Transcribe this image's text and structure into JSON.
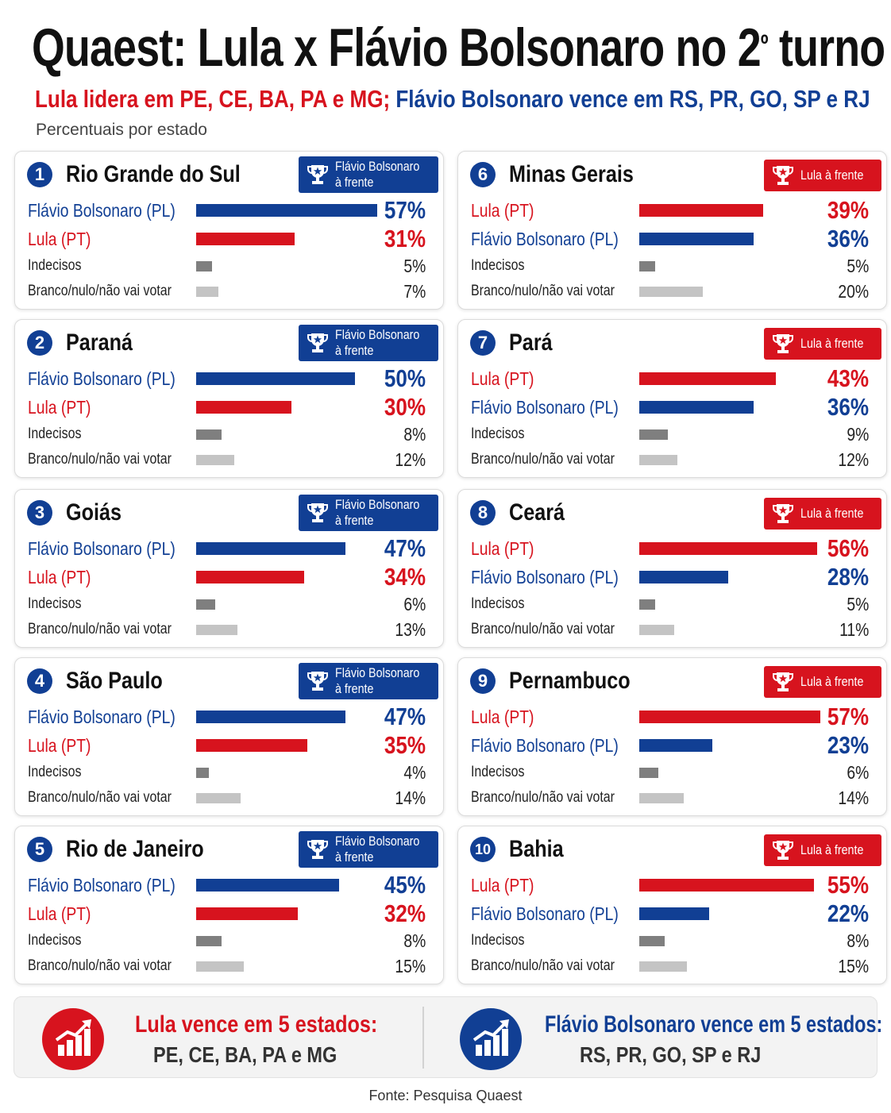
{
  "title": "Quaest: Lula x Flávio Bolsonaro no 2",
  "title_sup": "º",
  "title_end": " turno",
  "subtitle_red": "Lula lidera em PE, CE, BA, PA e MG;",
  "subtitle_blue": "Flávio Bolsonaro vence em RS, PR, GO, SP e RJ",
  "subnote": "Percentuais por estado",
  "colors": {
    "lula": "#d7131e",
    "flavio": "#113f94",
    "indecisos": "#7f7f7f",
    "branco": "#c4c4c4"
  },
  "chart_data": {
    "type": "bar",
    "categories": [
      "Flávio Bolsonaro (PL)",
      "Lula (PT)",
      "Indecisos",
      "Branco/nulo/não vai votar"
    ],
    "states": [
      {
        "num": "1",
        "name": "Rio Grande do Sul",
        "leader": "flavio",
        "badge": [
          "Flávio Bolsonaro",
          "à frente"
        ],
        "rows": [
          {
            "label": "Flávio Bolsonaro (PL)",
            "kind": "flavio",
            "value": 57,
            "text": "57%"
          },
          {
            "label": "Lula (PT)",
            "kind": "lula",
            "value": 31,
            "text": "31%"
          },
          {
            "label": "Indecisos",
            "kind": "indecisos",
            "value": 5,
            "text": "5%"
          },
          {
            "label": "Branco/nulo/não vai votar",
            "kind": "branco",
            "value": 7,
            "text": "7%"
          }
        ]
      },
      {
        "num": "2",
        "name": "Paraná",
        "leader": "flavio",
        "badge": [
          "Flávio Bolsonaro",
          "à frente"
        ],
        "rows": [
          {
            "label": "Flávio Bolsonaro (PL)",
            "kind": "flavio",
            "value": 50,
            "text": "50%"
          },
          {
            "label": "Lula (PT)",
            "kind": "lula",
            "value": 30,
            "text": "30%"
          },
          {
            "label": "Indecisos",
            "kind": "indecisos",
            "value": 8,
            "text": "8%"
          },
          {
            "label": "Branco/nulo/não vai votar",
            "kind": "branco",
            "value": 12,
            "text": "12%"
          }
        ]
      },
      {
        "num": "3",
        "name": "Goiás",
        "leader": "flavio",
        "badge": [
          "Flávio Bolsonaro",
          "à frente"
        ],
        "rows": [
          {
            "label": "Flávio Bolsonaro (PL)",
            "kind": "flavio",
            "value": 47,
            "text": "47%"
          },
          {
            "label": "Lula (PT)",
            "kind": "lula",
            "value": 34,
            "text": "34%"
          },
          {
            "label": "Indecisos",
            "kind": "indecisos",
            "value": 6,
            "text": "6%"
          },
          {
            "label": "Branco/nulo/não vai votar",
            "kind": "branco",
            "value": 13,
            "text": "13%"
          }
        ]
      },
      {
        "num": "4",
        "name": "São Paulo",
        "leader": "flavio",
        "badge": [
          "Flávio Bolsonaro",
          "à frente"
        ],
        "rows": [
          {
            "label": "Flávio Bolsonaro (PL)",
            "kind": "flavio",
            "value": 47,
            "text": "47%"
          },
          {
            "label": "Lula (PT)",
            "kind": "lula",
            "value": 35,
            "text": "35%"
          },
          {
            "label": "Indecisos",
            "kind": "indecisos",
            "value": 4,
            "text": "4%"
          },
          {
            "label": "Branco/nulo/não vai votar",
            "kind": "branco",
            "value": 14,
            "text": "14%"
          }
        ]
      },
      {
        "num": "5",
        "name": "Rio de Janeiro",
        "leader": "flavio",
        "badge": [
          "Flávio Bolsonaro",
          "à frente"
        ],
        "rows": [
          {
            "label": "Flávio Bolsonaro (PL)",
            "kind": "flavio",
            "value": 45,
            "text": "45%"
          },
          {
            "label": "Lula (PT)",
            "kind": "lula",
            "value": 32,
            "text": "32%"
          },
          {
            "label": "Indecisos",
            "kind": "indecisos",
            "value": 8,
            "text": "8%"
          },
          {
            "label": "Branco/nulo/não vai votar",
            "kind": "branco",
            "value": 15,
            "text": "15%"
          }
        ]
      },
      {
        "num": "6",
        "name": "Minas Gerais",
        "leader": "lula",
        "badge": [
          "Lula à frente"
        ],
        "rows": [
          {
            "label": "Lula (PT)",
            "kind": "lula",
            "value": 39,
            "text": "39%"
          },
          {
            "label": "Flávio Bolsonaro (PL)",
            "kind": "flavio",
            "value": 36,
            "text": "36%"
          },
          {
            "label": "Indecisos",
            "kind": "indecisos",
            "value": 5,
            "text": "5%"
          },
          {
            "label": "Branco/nulo/não vai votar",
            "kind": "branco",
            "value": 20,
            "text": "20%"
          }
        ]
      },
      {
        "num": "7",
        "name": "Pará",
        "leader": "lula",
        "badge": [
          "Lula à frente"
        ],
        "rows": [
          {
            "label": "Lula (PT)",
            "kind": "lula",
            "value": 43,
            "text": "43%"
          },
          {
            "label": "Flávio Bolsonaro (PL)",
            "kind": "flavio",
            "value": 36,
            "text": "36%"
          },
          {
            "label": "Indecisos",
            "kind": "indecisos",
            "value": 9,
            "text": "9%"
          },
          {
            "label": "Branco/nulo/não vai votar",
            "kind": "branco",
            "value": 12,
            "text": "12%"
          }
        ]
      },
      {
        "num": "8",
        "name": "Ceará",
        "leader": "lula",
        "badge": [
          "Lula à frente"
        ],
        "rows": [
          {
            "label": "Lula (PT)",
            "kind": "lula",
            "value": 56,
            "text": "56%"
          },
          {
            "label": "Flávio Bolsonaro (PL)",
            "kind": "flavio",
            "value": 28,
            "text": "28%"
          },
          {
            "label": "Indecisos",
            "kind": "indecisos",
            "value": 5,
            "text": "5%"
          },
          {
            "label": "Branco/nulo/não vai votar",
            "kind": "branco",
            "value": 11,
            "text": "11%"
          }
        ]
      },
      {
        "num": "9",
        "name": "Pernambuco",
        "leader": "lula",
        "badge": [
          "Lula à frente"
        ],
        "rows": [
          {
            "label": "Lula (PT)",
            "kind": "lula",
            "value": 57,
            "text": "57%"
          },
          {
            "label": "Flávio Bolsonaro (PL)",
            "kind": "flavio",
            "value": 23,
            "text": "23%"
          },
          {
            "label": "Indecisos",
            "kind": "indecisos",
            "value": 6,
            "text": "6%"
          },
          {
            "label": "Branco/nulo/não vai votar",
            "kind": "branco",
            "value": 14,
            "text": "14%"
          }
        ]
      },
      {
        "num": "10",
        "name": "Bahia",
        "leader": "lula",
        "badge": [
          "Lula à frente"
        ],
        "rows": [
          {
            "label": "Lula (PT)",
            "kind": "lula",
            "value": 55,
            "text": "55%"
          },
          {
            "label": "Flávio Bolsonaro (PL)",
            "kind": "flavio",
            "value": 22,
            "text": "22%"
          },
          {
            "label": "Indecisos",
            "kind": "indecisos",
            "value": 8,
            "text": "8%"
          },
          {
            "label": "Branco/nulo/não vai votar",
            "kind": "branco",
            "value": 15,
            "text": "15%"
          }
        ]
      }
    ]
  },
  "footer": {
    "lula_heading": "Lula vence em 5 estados:",
    "lula_states": "PE, CE, BA, PA e MG",
    "flavio_heading": "Flávio Bolsonaro vence em 5 estados:",
    "flavio_states": "RS, PR, GO, SP e RJ",
    "icon": "chart-growth-icon"
  },
  "source": "Fonte: Pesquisa Quaest"
}
